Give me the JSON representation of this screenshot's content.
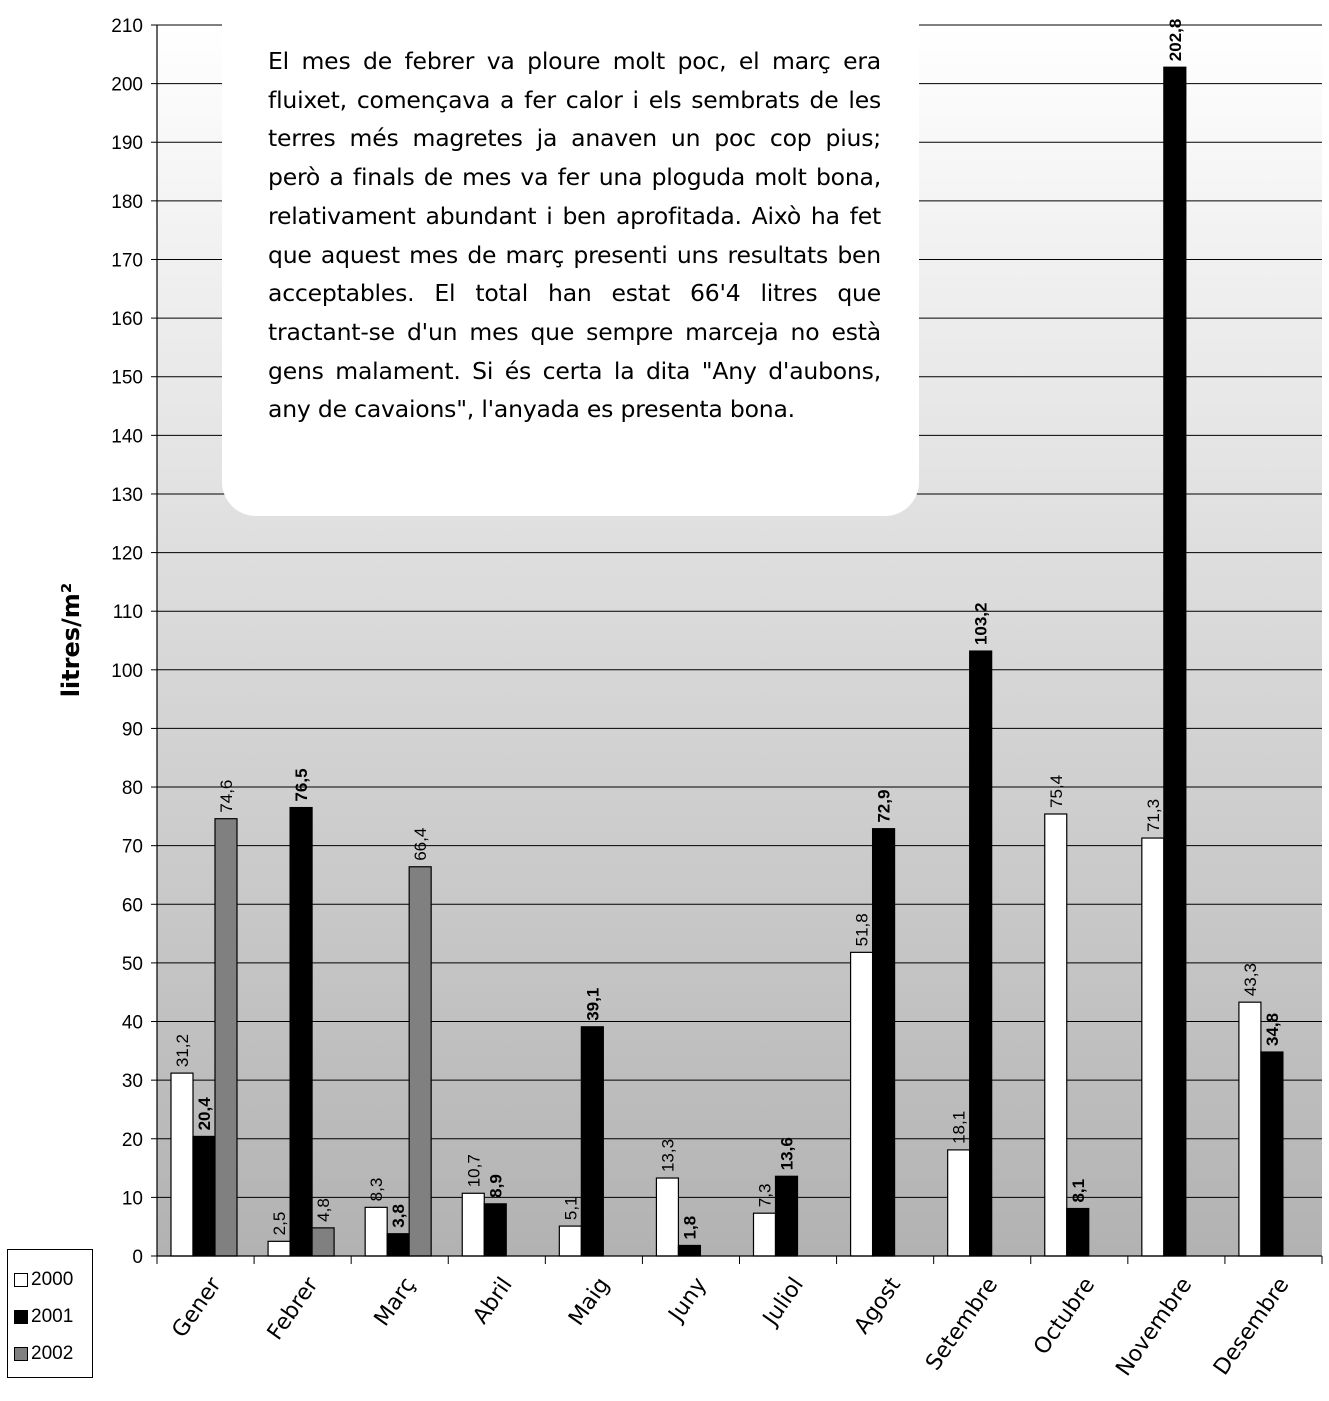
{
  "chart_data": {
    "type": "bar",
    "ylabel": "litres/m²",
    "ylim": [
      0,
      210
    ],
    "ytick_step": 10,
    "grid": true,
    "legend_position": "bottom-left",
    "categories": [
      "Gener",
      "Febrer",
      "Març",
      "Abril",
      "Maig",
      "Juny",
      "Juliol",
      "Agost",
      "Setembre",
      "Octubre",
      "Novembre",
      "Desembre"
    ],
    "series": [
      {
        "name": "2000",
        "color": "#ffffff",
        "values": [
          31.2,
          2.5,
          8.3,
          10.7,
          5.1,
          13.3,
          7.3,
          51.8,
          18.1,
          75.4,
          71.3,
          43.3
        ],
        "labels": [
          "31,2",
          "2,5",
          "8,3",
          "10,7",
          "5,1",
          "13,3",
          "7,3",
          "51,8",
          "18,1",
          "75,4",
          "71,3",
          "43,3"
        ]
      },
      {
        "name": "2001",
        "color": "#000000",
        "values": [
          20.4,
          76.5,
          3.8,
          8.9,
          39.1,
          1.8,
          13.6,
          72.9,
          103.2,
          8.1,
          202.8,
          34.8
        ],
        "labels": [
          "20,4",
          "76,5",
          "3,8",
          "8,9",
          "39,1",
          "1,8",
          "13,6",
          "72,9",
          "103,2",
          "8,1",
          "202,8",
          "34,8"
        ]
      },
      {
        "name": "2002",
        "color": "#808080",
        "values": [
          74.6,
          4.8,
          66.4,
          null,
          null,
          null,
          null,
          null,
          null,
          null,
          null,
          null
        ],
        "labels": [
          "74,6",
          "4,8",
          "66,4",
          null,
          null,
          null,
          null,
          null,
          null,
          null,
          null,
          null
        ]
      }
    ]
  },
  "note": {
    "text": "El mes de febrer va ploure molt poc, el març era fluixet, començava a fer calor i els sembrats de les terres més magretes ja anaven un poc cop pius; però a finals de mes va fer una ploguda molt bona, relativament abundant i ben aprofitada. Això ha fet que aquest mes de març presenti uns resultats ben acceptables. El total han estat 66'4 litres que tractant-se d'un mes que sempre marceja no està gens malament. Si és certa la dita \"Any d'aubons, any de cavaions\", l'anyada es presenta bona."
  },
  "legend": {
    "items": [
      {
        "label": "2000",
        "color": "#ffffff"
      },
      {
        "label": "2001",
        "color": "#000000"
      },
      {
        "label": "2002",
        "color": "#808080"
      }
    ]
  }
}
